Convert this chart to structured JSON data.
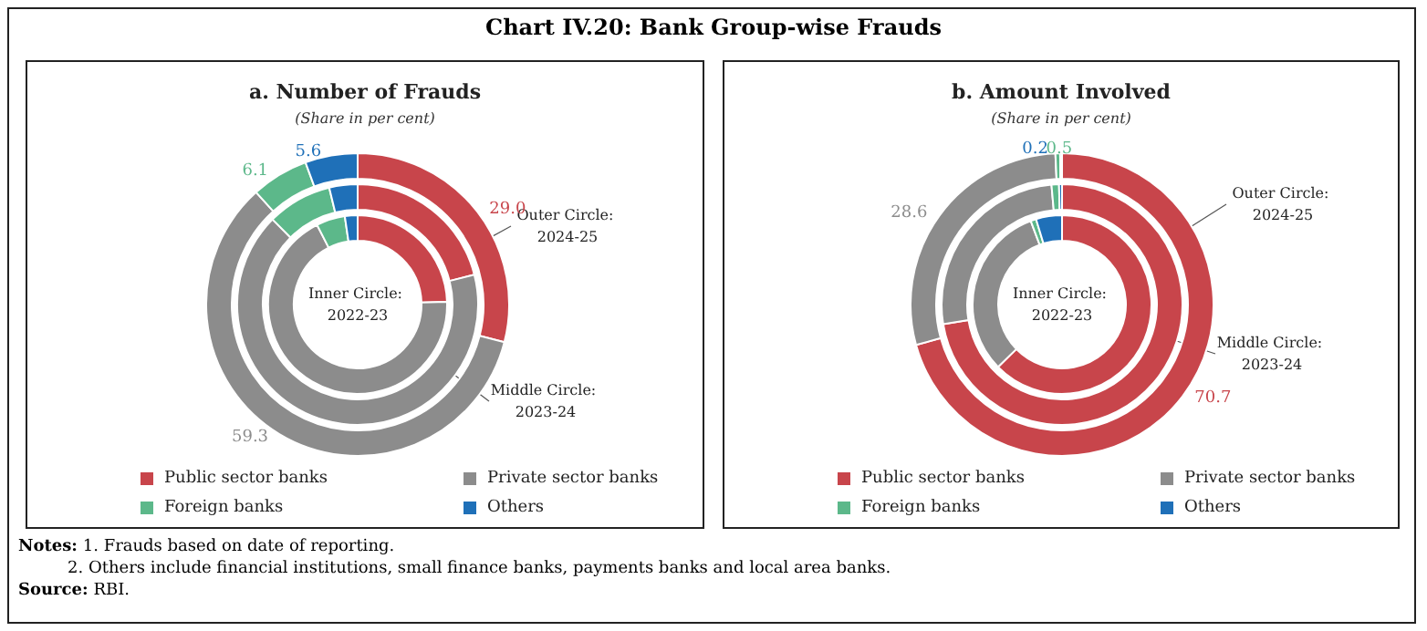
{
  "chart_data": [
    {
      "type": "other",
      "title": "Chart IV.20: Bank Group-wise Frauds"
    },
    {
      "type": "donut",
      "title": "a. Number of Frauds",
      "subtitle": "(Share in per cent)",
      "categories": [
        "Public sector banks",
        "Private sector banks",
        "Foreign banks",
        "Others"
      ],
      "legend": "bottom",
      "series": [
        {
          "name": "Inner Circle: 2022-23",
          "colors": [
            "#c8454b",
            "#8c8c8c",
            "#5cb88a",
            "#1f70b8"
          ],
          "values": [
            24.5,
            68.0,
            5.2,
            2.3
          ]
        },
        {
          "name": "Middle Circle: 2023-24",
          "colors": [
            "#c8454b",
            "#8c8c8c",
            "#5cb88a",
            "#1f70b8"
          ],
          "values": [
            21.0,
            66.5,
            8.7,
            3.8
          ]
        },
        {
          "name": "Outer Circle: 2024-25",
          "colors": [
            "#c8454b",
            "#8c8c8c",
            "#5cb88a",
            "#1f70b8"
          ],
          "values": [
            29.0,
            59.3,
            6.1,
            5.6
          ],
          "value_labels": [
            "29.0",
            "59.3",
            "6.1",
            "5.6"
          ]
        }
      ]
    },
    {
      "type": "donut",
      "title": "b. Amount Involved",
      "subtitle": "(Share in per cent)",
      "categories": [
        "Public sector banks",
        "Private sector banks",
        "Foreign banks",
        "Others"
      ],
      "legend": "bottom",
      "series": [
        {
          "name": "Inner Circle: 2022-23",
          "colors": [
            "#c8454b",
            "#8c8c8c",
            "#5cb88a",
            "#1f70b8"
          ],
          "values": [
            62.7,
            31.6,
            1.0,
            4.7
          ]
        },
        {
          "name": "Middle Circle: 2023-24",
          "colors": [
            "#c8454b",
            "#8c8c8c",
            "#5cb88a",
            "#1f70b8"
          ],
          "values": [
            72.4,
            26.2,
            1.0,
            0.4
          ]
        },
        {
          "name": "Outer Circle: 2024-25",
          "colors": [
            "#c8454b",
            "#8c8c8c",
            "#5cb88a",
            "#1f70b8"
          ],
          "values": [
            70.7,
            28.6,
            0.5,
            0.2
          ],
          "value_labels": [
            "70.7",
            "28.6",
            "0.5",
            "0.2"
          ]
        }
      ]
    },
    {
      "type": "other",
      "annotations": [
        "Notes: 1. Frauds based on date of reporting.",
        "2. Others include financial institutions, small finance banks, payments banks and local area banks.",
        "Source: RBI."
      ]
    }
  ]
}
